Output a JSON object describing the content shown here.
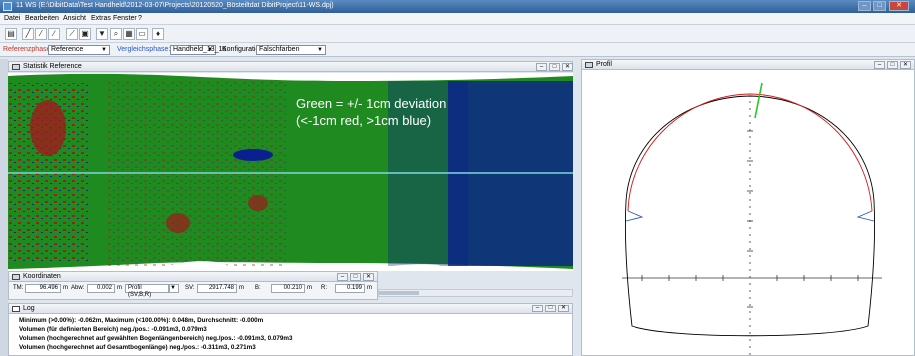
{
  "app": {
    "title": "11 WS (E:\\DibitData\\Test Handheld\\2012-03-07\\Projects\\20120520_Bösteiltdat DibitProject\\11-WS.dpj)"
  },
  "window_controls": [
    "–",
    "□",
    "✕"
  ],
  "menu": [
    "Datei",
    "Bearbeiten",
    "Ansicht",
    "Extras",
    "Fenster",
    "?"
  ],
  "phasebar": {
    "reference_label": "Referenzphase:",
    "reference_value": "Reference",
    "comparison_label": "Vergleichsphase:",
    "comparison_value": "Handheld_13_16",
    "config_label": "Konfiguration:",
    "config_value": "Falschfarben"
  },
  "statistics_panel": {
    "title": "Statistik Reference",
    "annotation_line1": "Green = +/- 1cm deviation",
    "annotation_line2": "(<-1cm red, >1cm blue)"
  },
  "coordinates_panel": {
    "title": "Koordinaten",
    "tm_label": "TM:",
    "tm_value": "96.496",
    "tm_unit": "m",
    "abw_label": "Abw:",
    "abw_value": "0.002",
    "abw_unit": "m",
    "profile_select": "Profil (SV,B,R)",
    "sv_label": "SV:",
    "sv_value": "2917.748",
    "sv_unit": "m",
    "b_label": "B:",
    "b_value": "00.210",
    "b_unit": "m",
    "r_label": "R:",
    "r_value": "0.199",
    "r_unit": "m"
  },
  "log_panel": {
    "title": "Log",
    "lines": [
      "Minimum (>0.00%): -0.062m, Maximum (<100.00%): 0.048m, Durchschnitt: -0.000m",
      "Volumen (für definierten Bereich) neg./pos.: -0.091m3, 0.079m3",
      "Volumen (hochgerechnet auf gewählten Bogenlängenbereich) neg./pos.: -0.091m3, 0.079m3",
      "Volumen (hochgerechnet auf Gesamtbogenlänge) neg./pos.: -0.311m3, 0.271m3"
    ]
  },
  "profile_panel": {
    "title": "Profil"
  },
  "colors": {
    "within_tolerance": "#1f8a1f",
    "below_tolerance": "#a01a1a",
    "above_tolerance": "#0c1f8f",
    "reference_profile": "#000000",
    "comparison_profile": "#d61c1c",
    "marker": "#22cc22"
  }
}
